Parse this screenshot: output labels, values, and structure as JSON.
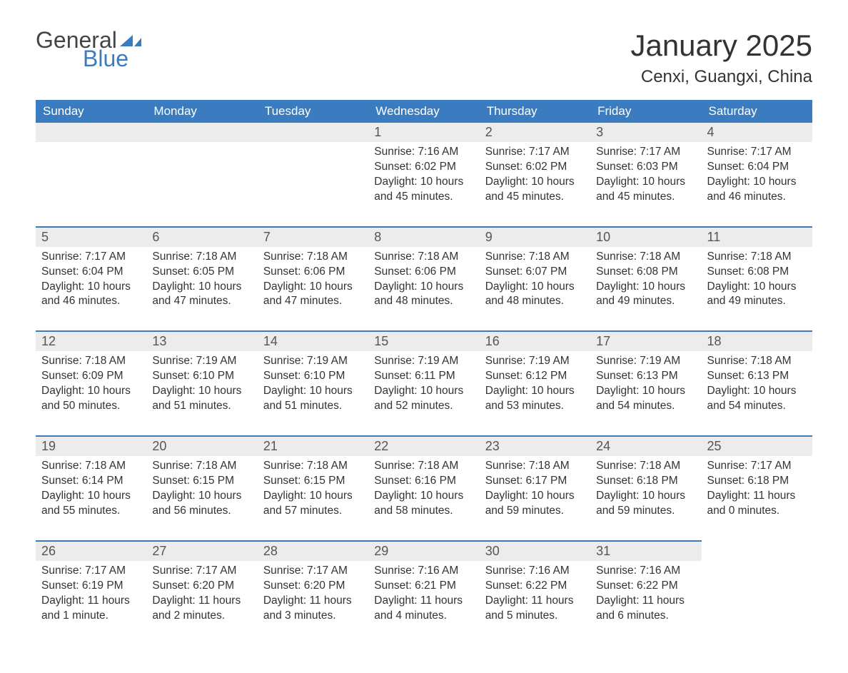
{
  "logo": {
    "text1": "General",
    "text2": "Blue",
    "flag_color": "#3b7cc0"
  },
  "title": "January 2025",
  "location": "Cenxi, Guangxi, China",
  "colors": {
    "header_bg": "#3b7cc0",
    "header_text": "#ffffff",
    "daynum_bg": "#ececec",
    "daynum_border": "#3b7cc0",
    "body_text": "#333333"
  },
  "day_headers": [
    "Sunday",
    "Monday",
    "Tuesday",
    "Wednesday",
    "Thursday",
    "Friday",
    "Saturday"
  ],
  "weeks": [
    [
      null,
      null,
      null,
      {
        "n": "1",
        "sunrise": "7:16 AM",
        "sunset": "6:02 PM",
        "daylight": "10 hours and 45 minutes."
      },
      {
        "n": "2",
        "sunrise": "7:17 AM",
        "sunset": "6:02 PM",
        "daylight": "10 hours and 45 minutes."
      },
      {
        "n": "3",
        "sunrise": "7:17 AM",
        "sunset": "6:03 PM",
        "daylight": "10 hours and 45 minutes."
      },
      {
        "n": "4",
        "sunrise": "7:17 AM",
        "sunset": "6:04 PM",
        "daylight": "10 hours and 46 minutes."
      }
    ],
    [
      {
        "n": "5",
        "sunrise": "7:17 AM",
        "sunset": "6:04 PM",
        "daylight": "10 hours and 46 minutes."
      },
      {
        "n": "6",
        "sunrise": "7:18 AM",
        "sunset": "6:05 PM",
        "daylight": "10 hours and 47 minutes."
      },
      {
        "n": "7",
        "sunrise": "7:18 AM",
        "sunset": "6:06 PM",
        "daylight": "10 hours and 47 minutes."
      },
      {
        "n": "8",
        "sunrise": "7:18 AM",
        "sunset": "6:06 PM",
        "daylight": "10 hours and 48 minutes."
      },
      {
        "n": "9",
        "sunrise": "7:18 AM",
        "sunset": "6:07 PM",
        "daylight": "10 hours and 48 minutes."
      },
      {
        "n": "10",
        "sunrise": "7:18 AM",
        "sunset": "6:08 PM",
        "daylight": "10 hours and 49 minutes."
      },
      {
        "n": "11",
        "sunrise": "7:18 AM",
        "sunset": "6:08 PM",
        "daylight": "10 hours and 49 minutes."
      }
    ],
    [
      {
        "n": "12",
        "sunrise": "7:18 AM",
        "sunset": "6:09 PM",
        "daylight": "10 hours and 50 minutes."
      },
      {
        "n": "13",
        "sunrise": "7:19 AM",
        "sunset": "6:10 PM",
        "daylight": "10 hours and 51 minutes."
      },
      {
        "n": "14",
        "sunrise": "7:19 AM",
        "sunset": "6:10 PM",
        "daylight": "10 hours and 51 minutes."
      },
      {
        "n": "15",
        "sunrise": "7:19 AM",
        "sunset": "6:11 PM",
        "daylight": "10 hours and 52 minutes."
      },
      {
        "n": "16",
        "sunrise": "7:19 AM",
        "sunset": "6:12 PM",
        "daylight": "10 hours and 53 minutes."
      },
      {
        "n": "17",
        "sunrise": "7:19 AM",
        "sunset": "6:13 PM",
        "daylight": "10 hours and 54 minutes."
      },
      {
        "n": "18",
        "sunrise": "7:18 AM",
        "sunset": "6:13 PM",
        "daylight": "10 hours and 54 minutes."
      }
    ],
    [
      {
        "n": "19",
        "sunrise": "7:18 AM",
        "sunset": "6:14 PM",
        "daylight": "10 hours and 55 minutes."
      },
      {
        "n": "20",
        "sunrise": "7:18 AM",
        "sunset": "6:15 PM",
        "daylight": "10 hours and 56 minutes."
      },
      {
        "n": "21",
        "sunrise": "7:18 AM",
        "sunset": "6:15 PM",
        "daylight": "10 hours and 57 minutes."
      },
      {
        "n": "22",
        "sunrise": "7:18 AM",
        "sunset": "6:16 PM",
        "daylight": "10 hours and 58 minutes."
      },
      {
        "n": "23",
        "sunrise": "7:18 AM",
        "sunset": "6:17 PM",
        "daylight": "10 hours and 59 minutes."
      },
      {
        "n": "24",
        "sunrise": "7:18 AM",
        "sunset": "6:18 PM",
        "daylight": "10 hours and 59 minutes."
      },
      {
        "n": "25",
        "sunrise": "7:17 AM",
        "sunset": "6:18 PM",
        "daylight": "11 hours and 0 minutes."
      }
    ],
    [
      {
        "n": "26",
        "sunrise": "7:17 AM",
        "sunset": "6:19 PM",
        "daylight": "11 hours and 1 minute."
      },
      {
        "n": "27",
        "sunrise": "7:17 AM",
        "sunset": "6:20 PM",
        "daylight": "11 hours and 2 minutes."
      },
      {
        "n": "28",
        "sunrise": "7:17 AM",
        "sunset": "6:20 PM",
        "daylight": "11 hours and 3 minutes."
      },
      {
        "n": "29",
        "sunrise": "7:16 AM",
        "sunset": "6:21 PM",
        "daylight": "11 hours and 4 minutes."
      },
      {
        "n": "30",
        "sunrise": "7:16 AM",
        "sunset": "6:22 PM",
        "daylight": "11 hours and 5 minutes."
      },
      {
        "n": "31",
        "sunrise": "7:16 AM",
        "sunset": "6:22 PM",
        "daylight": "11 hours and 6 minutes."
      },
      null
    ]
  ],
  "labels": {
    "sunrise": "Sunrise: ",
    "sunset": "Sunset: ",
    "daylight": "Daylight: "
  }
}
